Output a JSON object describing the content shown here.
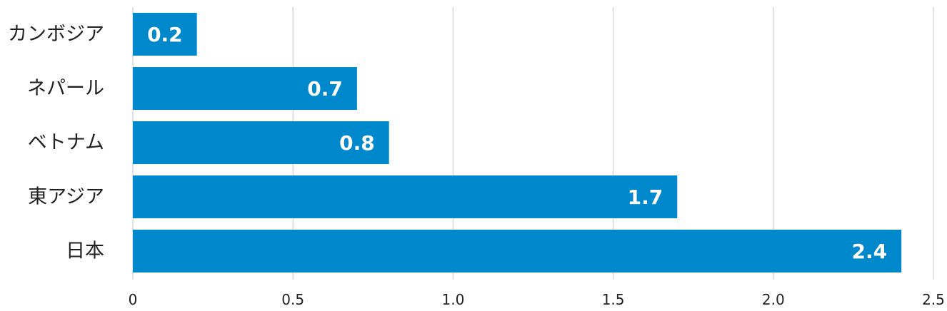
{
  "chart_data": {
    "type": "bar",
    "orientation": "horizontal",
    "categories": [
      "カンボジア",
      "ネパール",
      "ベトナム",
      "東アジア",
      "日本"
    ],
    "values": [
      0.2,
      0.7,
      0.8,
      1.7,
      2.4
    ],
    "value_labels": [
      "0.2",
      "0.7",
      "0.8",
      "1.7",
      "2.4"
    ],
    "x_ticks": [
      "0",
      "0.5",
      "1.0",
      "1.5",
      "2.0",
      "2.5"
    ],
    "x_tick_values": [
      0,
      0.5,
      1.0,
      1.5,
      2.0,
      2.5
    ],
    "xlim": [
      0,
      2.5
    ],
    "grid": true,
    "bar_color": "#0088cc",
    "value_label_color": "#ffffff"
  }
}
